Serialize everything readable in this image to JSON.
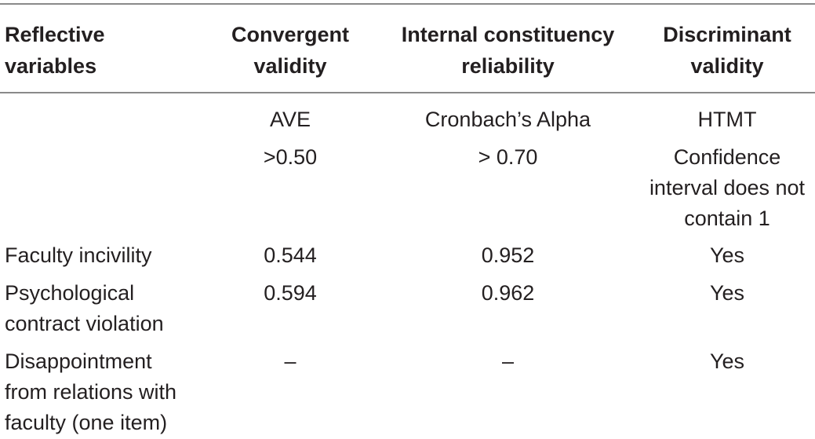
{
  "table": {
    "headers": [
      [
        "Reflective",
        "variables"
      ],
      [
        "Convergent",
        "validity"
      ],
      [
        "Internal constituency",
        "reliability"
      ],
      [
        "Discriminant",
        "validity"
      ]
    ],
    "criteria": {
      "measure": [
        "",
        "AVE",
        "Cronbach’s Alpha",
        "HTMT"
      ],
      "threshold": [
        "",
        ">0.50",
        "> 0.70",
        [
          "Confidence",
          "interval does not",
          "contain 1"
        ]
      ]
    },
    "rows": [
      {
        "variable": [
          "Faculty incivility"
        ],
        "ave": "0.544",
        "alpha": "0.952",
        "htmt": "Yes"
      },
      {
        "variable": [
          "Psychological",
          "contract violation"
        ],
        "ave": "0.594",
        "alpha": "0.962",
        "htmt": "Yes"
      },
      {
        "variable": [
          "Disappointment",
          "from relations with",
          "faculty (one item)"
        ],
        "ave": "–",
        "alpha": "–",
        "htmt": "Yes"
      }
    ]
  }
}
